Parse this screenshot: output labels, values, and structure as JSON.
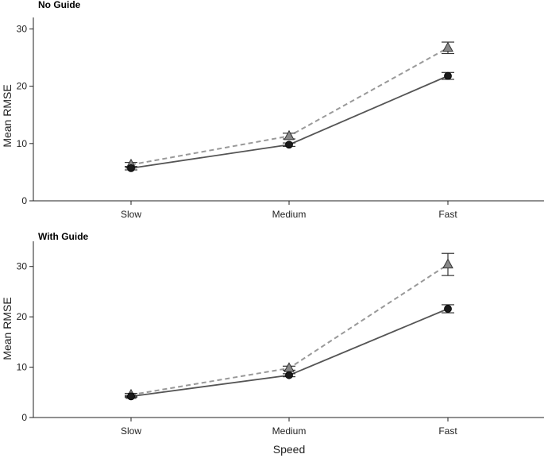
{
  "chart_data": [
    {
      "type": "line",
      "title": "No Guide",
      "xlabel": "",
      "ylabel": "Mean RMSE",
      "categories": [
        "Slow",
        "Medium",
        "Fast"
      ],
      "ylim": [
        0,
        32
      ],
      "yticks": [
        0,
        10,
        20,
        30
      ],
      "grid": false,
      "series": [
        {
          "marker": "circle",
          "style": "solid",
          "color": "#555555",
          "values": [
            5.7,
            9.8,
            21.8
          ],
          "err": [
            0.3,
            0.3,
            0.6
          ]
        },
        {
          "marker": "triangle",
          "style": "dashed",
          "color": "#999999",
          "values": [
            6.3,
            11.3,
            26.7
          ],
          "err": [
            0.4,
            0.5,
            1.0
          ]
        }
      ]
    },
    {
      "type": "line",
      "title": "With Guide",
      "xlabel": "Speed",
      "ylabel": "Mean RMSE",
      "categories": [
        "Slow",
        "Medium",
        "Fast"
      ],
      "ylim": [
        0,
        35
      ],
      "yticks": [
        0,
        10,
        20,
        30
      ],
      "grid": false,
      "series": [
        {
          "marker": "circle",
          "style": "solid",
          "color": "#555555",
          "values": [
            4.2,
            8.4,
            21.6
          ],
          "err": [
            0.2,
            0.3,
            0.8
          ]
        },
        {
          "marker": "triangle",
          "style": "dashed",
          "color": "#999999",
          "values": [
            4.5,
            9.8,
            30.4
          ],
          "err": [
            0.3,
            0.4,
            2.2
          ]
        }
      ]
    }
  ]
}
